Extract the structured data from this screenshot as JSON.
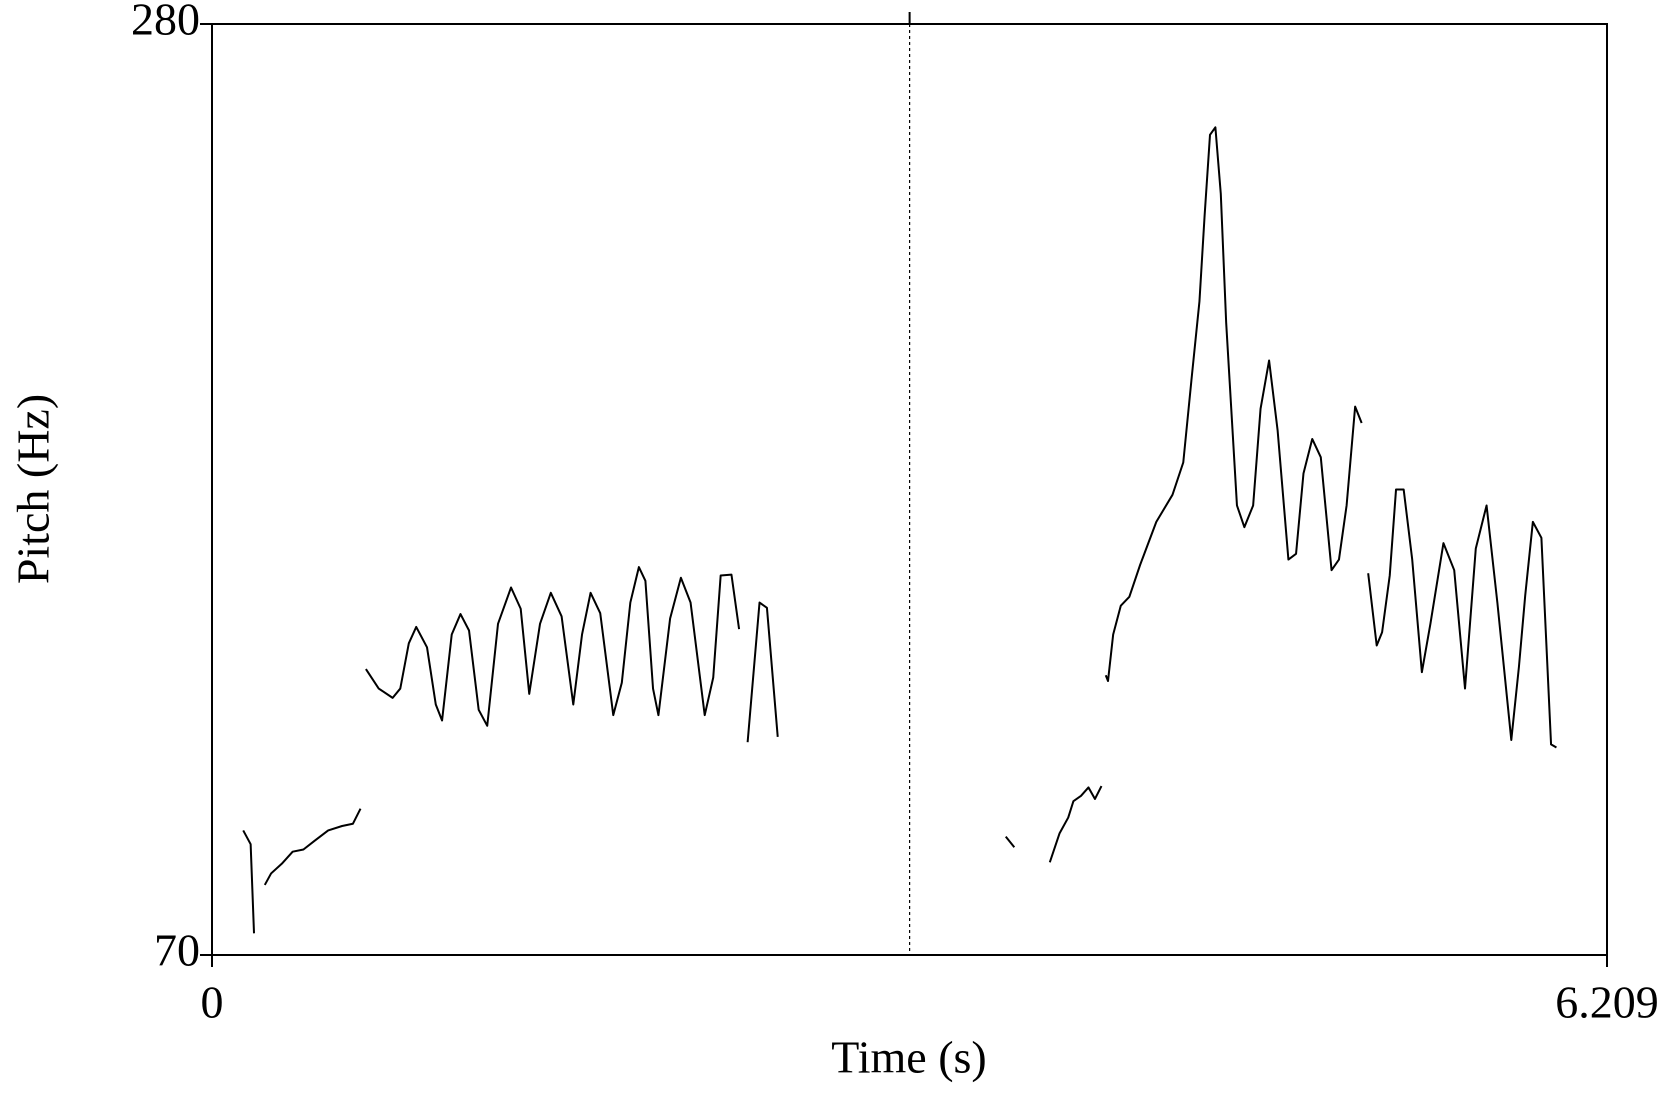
{
  "chart_data": {
    "type": "line",
    "x_label": "Time (s)",
    "y_label": "Pitch (Hz)",
    "xlim": [
      0,
      6.209
    ],
    "ylim": [
      70,
      280
    ],
    "xticks": [
      0,
      6.209
    ],
    "yticks": [
      70,
      280
    ],
    "cursor_x": 3.105,
    "series": [
      {
        "name": "Pitch",
        "color": "#000000",
        "x": [
          0.139,
          0.172,
          0.187,
          null,
          0.235,
          0.263,
          0.311,
          0.359,
          0.407,
          0.455,
          0.517,
          0.579,
          0.627,
          0.661,
          null,
          0.685,
          0.742,
          0.804,
          0.838,
          0.876,
          0.909,
          0.957,
          0.996,
          1.024,
          1.067,
          1.106,
          1.144,
          1.187,
          1.225,
          1.273,
          1.331,
          1.374,
          1.412,
          1.46,
          1.508,
          1.556,
          1.608,
          1.647,
          1.685,
          1.728,
          1.786,
          1.824,
          1.862,
          1.9,
          1.929,
          1.963,
          1.987,
          2.039,
          2.087,
          2.13,
          2.193,
          2.231,
          2.264,
          2.312,
          2.346,
          null,
          2.384,
          2.437,
          2.47,
          2.518,
          null,
          3.533,
          3.571,
          null,
          3.729,
          3.772,
          3.811,
          3.834,
          3.868,
          3.901,
          3.93,
          3.959,
          null,
          3.978,
          3.988,
          4.011,
          4.045,
          4.083,
          4.131,
          4.203,
          4.275,
          4.323,
          4.361,
          4.395,
          4.418,
          4.442,
          4.466,
          4.49,
          4.514,
          4.562,
          4.595,
          4.634,
          4.667,
          4.705,
          4.743,
          4.791,
          4.825,
          4.858,
          4.897,
          4.935,
          4.983,
          5.016,
          5.05,
          5.088,
          5.117,
          null,
          5.146,
          5.184,
          5.208,
          5.242,
          5.27,
          5.304,
          5.342,
          5.385,
          5.423,
          5.481,
          5.529,
          5.577,
          5.625,
          5.673,
          5.721,
          5.783,
          5.817,
          5.845,
          5.879,
          5.917,
          5.96,
          5.984
        ],
        "values": [
          98.1,
          95.0,
          74.9,
          null,
          85.8,
          88.4,
          90.6,
          93.3,
          93.8,
          95.7,
          98.1,
          99.1,
          99.6,
          103.0,
          null,
          134.5,
          130.1,
          128.0,
          130.1,
          140.3,
          144.0,
          139.4,
          126.5,
          122.9,
          142.3,
          146.9,
          143.2,
          125.3,
          121.7,
          144.7,
          152.9,
          148.1,
          128.9,
          144.7,
          151.7,
          146.4,
          126.5,
          142.3,
          151.7,
          147.1,
          124.1,
          131.4,
          149.5,
          157.5,
          154.4,
          130.1,
          124.1,
          145.9,
          155.1,
          149.5,
          124.1,
          132.6,
          155.6,
          155.8,
          143.5,
          null,
          118.0,
          149.5,
          148.3,
          119.2,
          null,
          96.7,
          94.3,
          null,
          90.9,
          97.4,
          101.0,
          104.7,
          105.9,
          107.8,
          105.2,
          108.1,
          null,
          133.1,
          131.8,
          142.3,
          148.8,
          150.8,
          158.0,
          167.7,
          173.8,
          181.1,
          200.5,
          217.4,
          236.8,
          255.0,
          256.7,
          241.7,
          212.6,
          171.4,
          166.5,
          171.4,
          193.2,
          204.1,
          188.3,
          159.2,
          160.5,
          178.6,
          186.4,
          182.3,
          156.8,
          159.2,
          171.4,
          193.7,
          190.0,
          null,
          156.1,
          139.8,
          142.8,
          155.6,
          175.0,
          175.0,
          159.2,
          133.8,
          144.7,
          162.9,
          156.8,
          130.1,
          161.7,
          171.4,
          149.5,
          118.5,
          135.0,
          151.1,
          167.7,
          164.1,
          117.5,
          116.8
        ]
      }
    ]
  }
}
